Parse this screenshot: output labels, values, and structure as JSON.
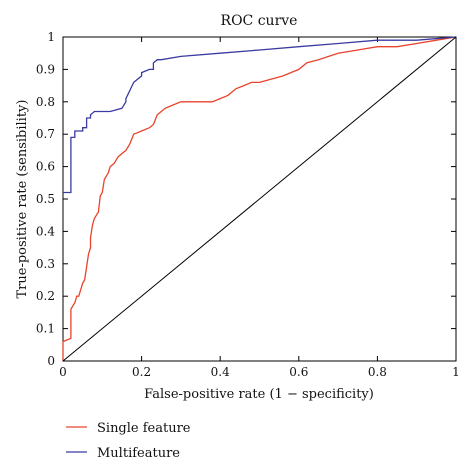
{
  "chart_data": {
    "type": "line",
    "title": "ROC curve",
    "xlabel": "False-positive rate (1 − specificity)",
    "ylabel": "True-positive rate (sensibility)",
    "xlim": [
      0,
      1
    ],
    "ylim": [
      0,
      1
    ],
    "xticks": [
      "0",
      "0.2",
      "0.4",
      "0.6",
      "0.8",
      "1"
    ],
    "yticks": [
      "0",
      "0.1",
      "0.2",
      "0.3",
      "0.4",
      "0.5",
      "0.6",
      "0.7",
      "0.8",
      "0.9",
      "1"
    ],
    "grid": false,
    "legend_position": "bottom-left, outside the axes",
    "series": [
      {
        "name": "Single feature",
        "color": "#e8432b",
        "x": [
          0,
          0,
          0.02,
          0.02,
          0.025,
          0.03,
          0.035,
          0.04,
          0.045,
          0.05,
          0.055,
          0.06,
          0.065,
          0.07,
          0.07,
          0.075,
          0.08,
          0.085,
          0.09,
          0.095,
          0.1,
          0.105,
          0.11,
          0.115,
          0.12,
          0.13,
          0.14,
          0.15,
          0.16,
          0.17,
          0.18,
          0.2,
          0.22,
          0.23,
          0.24,
          0.26,
          0.28,
          0.3,
          0.33,
          0.36,
          0.38,
          0.4,
          0.42,
          0.44,
          0.46,
          0.48,
          0.5,
          0.53,
          0.56,
          0.58,
          0.6,
          0.62,
          0.65,
          0.7,
          0.75,
          0.8,
          0.85,
          0.9,
          0.95,
          1
        ],
        "y": [
          0,
          0.06,
          0.07,
          0.16,
          0.17,
          0.18,
          0.2,
          0.2,
          0.22,
          0.24,
          0.25,
          0.29,
          0.33,
          0.35,
          0.38,
          0.42,
          0.44,
          0.45,
          0.46,
          0.51,
          0.52,
          0.56,
          0.57,
          0.58,
          0.6,
          0.61,
          0.63,
          0.64,
          0.65,
          0.67,
          0.7,
          0.71,
          0.72,
          0.73,
          0.76,
          0.78,
          0.79,
          0.8,
          0.8,
          0.8,
          0.8,
          0.81,
          0.82,
          0.84,
          0.85,
          0.86,
          0.86,
          0.87,
          0.88,
          0.89,
          0.9,
          0.92,
          0.93,
          0.95,
          0.96,
          0.97,
          0.97,
          0.98,
          0.99,
          1
        ]
      },
      {
        "name": "Multifeature",
        "color": "#3a3aa3",
        "x": [
          0,
          0.02,
          0.02,
          0.03,
          0.03,
          0.05,
          0.05,
          0.06,
          0.06,
          0.07,
          0.07,
          0.08,
          0.1,
          0.12,
          0.15,
          0.16,
          0.16,
          0.18,
          0.2,
          0.2,
          0.22,
          0.23,
          0.23,
          0.24,
          0.25,
          0.3,
          0.4,
          0.5,
          0.6,
          0.7,
          0.8,
          0.9,
          1
        ],
        "y": [
          0.52,
          0.52,
          0.69,
          0.69,
          0.71,
          0.71,
          0.72,
          0.72,
          0.75,
          0.75,
          0.76,
          0.77,
          0.77,
          0.77,
          0.78,
          0.8,
          0.81,
          0.86,
          0.88,
          0.89,
          0.9,
          0.9,
          0.92,
          0.93,
          0.93,
          0.94,
          0.95,
          0.96,
          0.97,
          0.98,
          0.99,
          0.99,
          1
        ]
      },
      {
        "name": "",
        "color": "#000000",
        "x": [
          0,
          1
        ],
        "y": [
          0,
          1
        ]
      }
    ]
  }
}
